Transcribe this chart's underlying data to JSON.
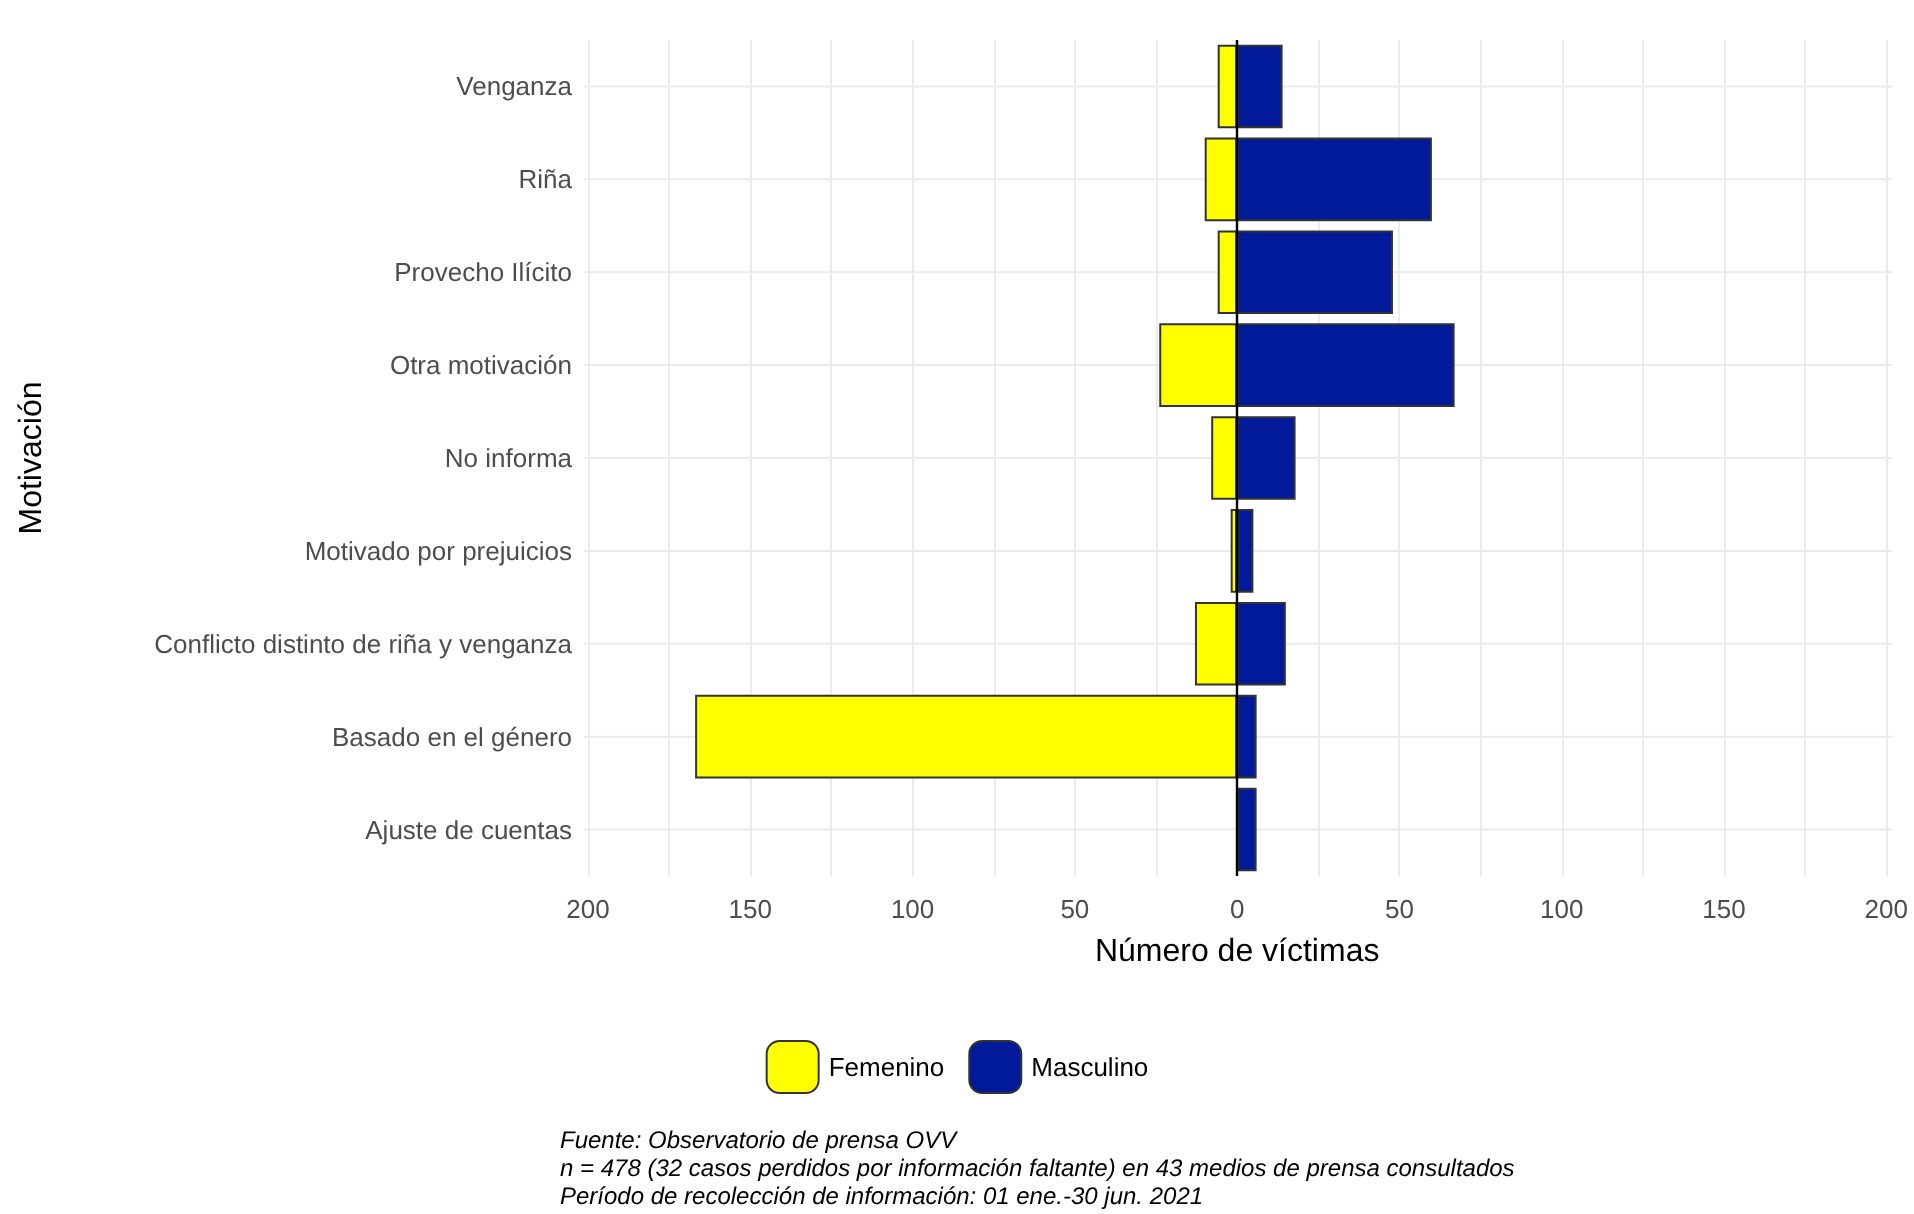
{
  "chart_data": {
    "type": "bar",
    "orientation": "horizontal",
    "stacked": true,
    "xlabel": "Número de víctimas",
    "ylabel": "Motivación",
    "categories": [
      "Venganza",
      "Riña",
      "Provecho Ilícito",
      "Otra motivación",
      "No informa",
      "Motivado por prejuicios",
      "Conflicto distinto de riña y venganza",
      "Basado en el género",
      "Ajuste de cuentas"
    ],
    "series": [
      {
        "name": "Femenino",
        "color": "#ffff00",
        "values": [
          -6,
          -10,
          -6,
          -24,
          -8,
          -2,
          -13,
          -167,
          0
        ]
      },
      {
        "name": "Masculino",
        "color": "#001a99",
        "values": [
          14,
          60,
          48,
          67,
          18,
          5,
          15,
          6,
          6
        ]
      }
    ],
    "xlim": [
      -200,
      200
    ],
    "xticks": [
      {
        "value": -200,
        "label": "200"
      },
      {
        "value": -175,
        "label": null
      },
      {
        "value": -150,
        "label": "150"
      },
      {
        "value": -125,
        "label": null
      },
      {
        "value": -100,
        "label": "100"
      },
      {
        "value": -75,
        "label": null
      },
      {
        "value": -50,
        "label": "50"
      },
      {
        "value": -25,
        "label": null
      },
      0,
      {
        "value": 25,
        "label": null
      },
      {
        "value": 50,
        "label": "50"
      },
      {
        "value": 75,
        "label": null
      },
      {
        "value": 100,
        "label": "100"
      },
      {
        "value": 125,
        "label": null
      },
      {
        "value": 150,
        "label": "150"
      },
      {
        "value": 175,
        "label": null
      },
      {
        "value": 200,
        "label": "200"
      }
    ],
    "ref_lines": [
      {
        "axis": "x",
        "value": 0,
        "color": "#000000"
      }
    ],
    "grid": true,
    "legend": "bottom",
    "annotations": [
      "Fuente: Observatorio de prensa OVV",
      "n = 478 (32 casos perdidos por información faltante) en 43 medios de prensa consultados",
      "Período de recolección de información: 01 ene.-30 jun. 2021"
    ]
  }
}
